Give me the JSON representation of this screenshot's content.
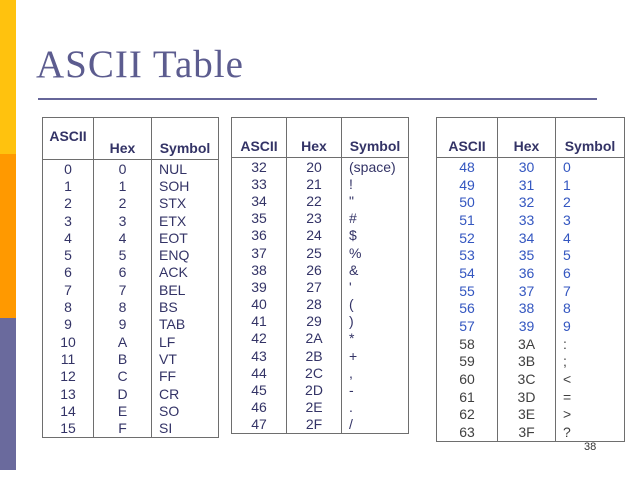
{
  "slide": {
    "title": "ASCII Table",
    "page_number": "38"
  },
  "colors": {
    "accent_yellow": "#FFC20E",
    "accent_orange": "#FF9900",
    "accent_slate": "#6A6A9D",
    "title_text": "#5C5C8F",
    "rule": "#666699",
    "table_border": "#6e6e6e",
    "text_navy": "#333366",
    "text_blue": "#3356C0",
    "text_gray": "#3F3F3F"
  },
  "tables": [
    {
      "name": "control-characters",
      "headers": [
        "ASCII",
        "Hex",
        "Symbol"
      ],
      "default_color": "navy",
      "rows": [
        [
          "0",
          "0",
          "NUL"
        ],
        [
          "1",
          "1",
          "SOH"
        ],
        [
          "2",
          "2",
          "STX"
        ],
        [
          "3",
          "3",
          "ETX"
        ],
        [
          "4",
          "4",
          "EOT"
        ],
        [
          "5",
          "5",
          "ENQ"
        ],
        [
          "6",
          "6",
          "ACK"
        ],
        [
          "7",
          "7",
          "BEL"
        ],
        [
          "8",
          "8",
          "BS"
        ],
        [
          "9",
          "9",
          "TAB"
        ],
        [
          "10",
          "A",
          "LF"
        ],
        [
          "11",
          "B",
          "VT"
        ],
        [
          "12",
          "C",
          "FF"
        ],
        [
          "13",
          "D",
          "CR"
        ],
        [
          "14",
          "E",
          "SO"
        ],
        [
          "15",
          "F",
          "SI"
        ]
      ]
    },
    {
      "name": "punctuation-characters",
      "headers": [
        "ASCII",
        "Hex",
        "Symbol"
      ],
      "default_color": "navy",
      "rows": [
        [
          "32",
          "20",
          "(space)"
        ],
        [
          "33",
          "21",
          "!"
        ],
        [
          "34",
          "22",
          "\""
        ],
        [
          "35",
          "23",
          "#"
        ],
        [
          "36",
          "24",
          "$"
        ],
        [
          "37",
          "25",
          "%"
        ],
        [
          "38",
          "26",
          "&"
        ],
        [
          "39",
          "27",
          "'"
        ],
        [
          "40",
          "28",
          "("
        ],
        [
          "41",
          "29",
          ")"
        ],
        [
          "42",
          "2A",
          "*"
        ],
        [
          "43",
          "2B",
          "+"
        ],
        [
          "44",
          "2C",
          ","
        ],
        [
          "45",
          "2D",
          "-"
        ],
        [
          "46",
          "2E",
          "."
        ],
        [
          "47",
          "2F",
          "/"
        ]
      ]
    },
    {
      "name": "digit-characters",
      "headers": [
        "ASCII",
        "Hex",
        "Symbol"
      ],
      "default_color": "blue",
      "rows": [
        [
          "48",
          "30",
          "0"
        ],
        [
          "49",
          "31",
          "1"
        ],
        [
          "50",
          "32",
          "2"
        ],
        [
          "51",
          "33",
          "3"
        ],
        [
          "52",
          "34",
          "4"
        ],
        [
          "53",
          "35",
          "5"
        ],
        [
          "54",
          "36",
          "6"
        ],
        [
          "55",
          "37",
          "7"
        ],
        [
          "56",
          "38",
          "8"
        ],
        [
          "57",
          "39",
          "9"
        ],
        [
          "58",
          "3A",
          ":",
          "gray"
        ],
        [
          "59",
          "3B",
          ";",
          "gray"
        ],
        [
          "60",
          "3C",
          "<",
          "gray"
        ],
        [
          "61",
          "3D",
          "=",
          "gray"
        ],
        [
          "62",
          "3E",
          ">",
          "gray"
        ],
        [
          "63",
          "3F",
          "?",
          "gray"
        ]
      ]
    }
  ]
}
